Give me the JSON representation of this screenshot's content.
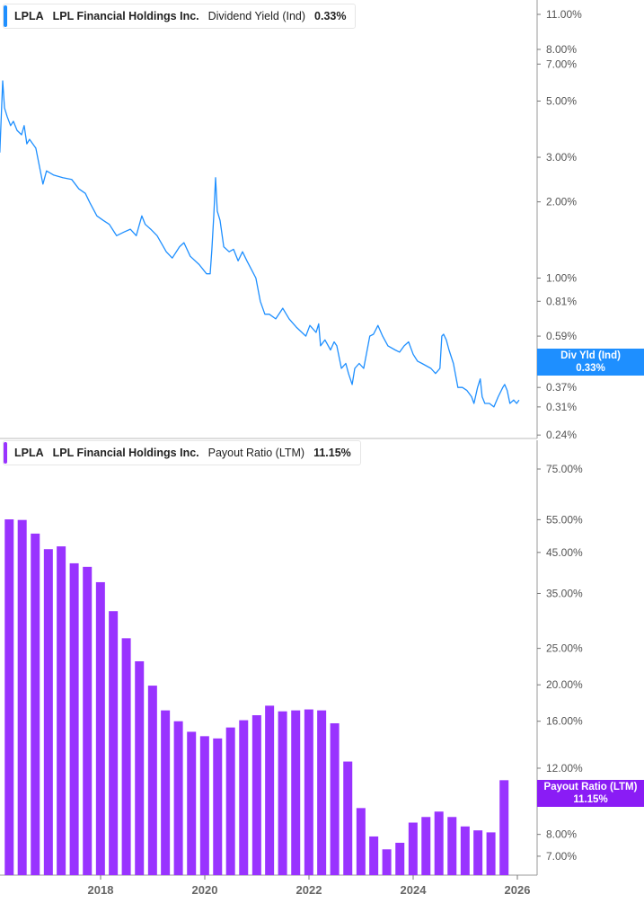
{
  "colors": {
    "yield_line": "#1e8fff",
    "payout_bar": "#9933ff",
    "yield_badge": "#1e8fff",
    "payout_badge": "#8a1cf5"
  },
  "top_legend": {
    "ticker": "LPLA",
    "company": "LPL Financial Holdings Inc.",
    "metric": "Dividend Yield (Ind)",
    "value": "0.33%"
  },
  "bottom_legend": {
    "ticker": "LPLA",
    "company": "LPL Financial Holdings Inc.",
    "metric": "Payout Ratio (LTM)",
    "value": "11.15%"
  },
  "top_badge": {
    "label": "Div Yld (Ind)",
    "value": "0.33%"
  },
  "bottom_badge": {
    "label": "Payout Ratio (LTM)",
    "value": "11.15%"
  },
  "chart_data": [
    {
      "type": "line",
      "series_label": "Dividend Yield (Ind)",
      "yscale": "log",
      "ylim": [
        0.24,
        12
      ],
      "y_ticks": [
        "11.00%",
        "8.00%",
        "7.00%",
        "5.00%",
        "3.00%",
        "2.00%",
        "1.00%",
        "0.81%",
        "0.59%",
        "0.37%",
        "0.31%",
        "0.24%"
      ],
      "y_tick_values": [
        11,
        8,
        7,
        5,
        3,
        2,
        1,
        0.81,
        0.59,
        0.37,
        0.31,
        0.24
      ],
      "points": [
        [
          "2016-01-25",
          3.13
        ],
        [
          "2016-02-14",
          6.01
        ],
        [
          "2016-02-27",
          4.7
        ],
        [
          "2016-03-17",
          4.34
        ],
        [
          "2016-04-10",
          4.0
        ],
        [
          "2016-04-29",
          4.16
        ],
        [
          "2016-05-25",
          3.83
        ],
        [
          "2016-06-26",
          3.68
        ],
        [
          "2016-07-14",
          4.0
        ],
        [
          "2016-08-02",
          3.39
        ],
        [
          "2016-08-21",
          3.53
        ],
        [
          "2016-10-04",
          3.26
        ],
        [
          "2016-11-23",
          2.35
        ],
        [
          "2016-12-18",
          2.65
        ],
        [
          "2017-02-07",
          2.55
        ],
        [
          "2017-04-11",
          2.49
        ],
        [
          "2017-06-13",
          2.45
        ],
        [
          "2017-08-02",
          2.25
        ],
        [
          "2017-09-16",
          2.16
        ],
        [
          "2017-10-17",
          1.99
        ],
        [
          "2017-12-06",
          1.76
        ],
        [
          "2018-01-20",
          1.69
        ],
        [
          "2018-03-03",
          1.63
        ],
        [
          "2018-04-23",
          1.47
        ],
        [
          "2018-06-13",
          1.52
        ],
        [
          "2018-07-28",
          1.56
        ],
        [
          "2018-09-08",
          1.47
        ],
        [
          "2018-10-17",
          1.76
        ],
        [
          "2018-11-10",
          1.63
        ],
        [
          "2018-12-18",
          1.56
        ],
        [
          "2019-02-01",
          1.47
        ],
        [
          "2019-04-06",
          1.27
        ],
        [
          "2019-05-18",
          1.2
        ],
        [
          "2019-07-08",
          1.33
        ],
        [
          "2019-08-08",
          1.38
        ],
        [
          "2019-09-21",
          1.22
        ],
        [
          "2019-11-23",
          1.13
        ],
        [
          "2020-01-13",
          1.04
        ],
        [
          "2020-02-08",
          1.04
        ],
        [
          "2020-02-20",
          1.3
        ],
        [
          "2020-03-04",
          1.76
        ],
        [
          "2020-03-17",
          2.49
        ],
        [
          "2020-03-29",
          1.84
        ],
        [
          "2020-04-17",
          1.69
        ],
        [
          "2020-05-13",
          1.33
        ],
        [
          "2020-06-20",
          1.27
        ],
        [
          "2020-07-21",
          1.3
        ],
        [
          "2020-08-22",
          1.17
        ],
        [
          "2020-09-22",
          1.27
        ],
        [
          "2020-10-23",
          1.17
        ],
        [
          "2020-11-24",
          1.08
        ],
        [
          "2020-12-25",
          1.0
        ],
        [
          "2021-01-25",
          0.81
        ],
        [
          "2021-02-26",
          0.72
        ],
        [
          "2021-03-29",
          0.72
        ],
        [
          "2021-05-13",
          0.69
        ],
        [
          "2021-07-01",
          0.76
        ],
        [
          "2021-08-15",
          0.69
        ],
        [
          "2021-10-04",
          0.64
        ],
        [
          "2021-12-10",
          0.59
        ],
        [
          "2022-01-07",
          0.65
        ],
        [
          "2022-02-20",
          0.61
        ],
        [
          "2022-03-10",
          0.66
        ],
        [
          "2022-03-23",
          0.54
        ],
        [
          "2022-04-23",
          0.57
        ],
        [
          "2022-06-01",
          0.52
        ],
        [
          "2022-06-26",
          0.56
        ],
        [
          "2022-07-15",
          0.54
        ],
        [
          "2022-08-16",
          0.44
        ],
        [
          "2022-09-16",
          0.46
        ],
        [
          "2022-10-05",
          0.42
        ],
        [
          "2022-10-31",
          0.38
        ],
        [
          "2022-11-18",
          0.44
        ],
        [
          "2022-12-19",
          0.46
        ],
        [
          "2023-01-19",
          0.44
        ],
        [
          "2023-02-07",
          0.5
        ],
        [
          "2023-03-03",
          0.59
        ],
        [
          "2023-03-29",
          0.6
        ],
        [
          "2023-04-29",
          0.65
        ],
        [
          "2023-06-01",
          0.59
        ],
        [
          "2023-07-08",
          0.54
        ],
        [
          "2023-08-28",
          0.52
        ],
        [
          "2023-09-28",
          0.51
        ],
        [
          "2023-10-30",
          0.54
        ],
        [
          "2023-11-30",
          0.56
        ],
        [
          "2024-01-01",
          0.5
        ],
        [
          "2024-01-31",
          0.47
        ],
        [
          "2024-03-03",
          0.46
        ],
        [
          "2024-05-05",
          0.44
        ],
        [
          "2024-06-06",
          0.42
        ],
        [
          "2024-07-07",
          0.44
        ],
        [
          "2024-07-20",
          0.59
        ],
        [
          "2024-08-02",
          0.6
        ],
        [
          "2024-08-21",
          0.57
        ],
        [
          "2024-09-09",
          0.52
        ],
        [
          "2024-10-10",
          0.46
        ],
        [
          "2024-11-10",
          0.37
        ],
        [
          "2024-12-12",
          0.37
        ],
        [
          "2025-01-13",
          0.36
        ],
        [
          "2025-02-14",
          0.34
        ],
        [
          "2025-03-03",
          0.32
        ],
        [
          "2025-03-28",
          0.37
        ],
        [
          "2025-04-16",
          0.4
        ],
        [
          "2025-04-29",
          0.34
        ],
        [
          "2025-05-18",
          0.32
        ],
        [
          "2025-06-19",
          0.32
        ],
        [
          "2025-07-21",
          0.31
        ],
        [
          "2025-08-20",
          0.34
        ],
        [
          "2025-09-21",
          0.37
        ],
        [
          "2025-10-04",
          0.38
        ],
        [
          "2025-10-22",
          0.36
        ],
        [
          "2025-11-10",
          0.32
        ],
        [
          "2025-12-06",
          0.33
        ],
        [
          "2025-12-27",
          0.32
        ],
        [
          "2026-01-13",
          0.33
        ]
      ]
    },
    {
      "type": "bar",
      "series_label": "Payout Ratio (LTM)",
      "yscale": "log",
      "ylim": [
        6.3,
        90
      ],
      "y_ticks": [
        "75.00%",
        "55.00%",
        "45.00%",
        "35.00%",
        "25.00%",
        "20.00%",
        "16.00%",
        "12.00%",
        "8.00%",
        "7.00%"
      ],
      "y_tick_values": [
        75,
        55,
        45,
        35,
        25,
        20,
        16,
        12,
        8,
        7
      ],
      "x_ticks": [
        "2018",
        "2020",
        "2022",
        "2024",
        "2026"
      ],
      "categories": [
        "2016-03-31",
        "2016-06-30",
        "2016-09-30",
        "2016-12-31",
        "2017-03-31",
        "2017-06-30",
        "2017-09-30",
        "2017-12-31",
        "2018-03-31",
        "2018-06-30",
        "2018-09-30",
        "2018-12-31",
        "2019-03-31",
        "2019-06-30",
        "2019-09-30",
        "2019-12-31",
        "2020-03-31",
        "2020-06-30",
        "2020-09-30",
        "2020-12-31",
        "2021-03-31",
        "2021-06-30",
        "2021-09-30",
        "2021-12-31",
        "2022-03-31",
        "2022-06-30",
        "2022-09-30",
        "2022-12-31",
        "2023-03-31",
        "2023-06-30",
        "2023-09-30",
        "2023-12-31",
        "2024-03-31",
        "2024-06-30",
        "2024-09-30",
        "2024-12-31",
        "2025-03-31",
        "2025-06-30",
        "2025-09-30"
      ],
      "values": [
        55.1,
        54.9,
        50.5,
        45.9,
        46.7,
        42.1,
        41.2,
        37.5,
        31.4,
        26.6,
        23.1,
        19.9,
        17.1,
        16.0,
        15.0,
        14.6,
        14.4,
        15.4,
        16.1,
        16.6,
        17.6,
        17.0,
        17.1,
        17.2,
        17.1,
        15.8,
        12.5,
        9.4,
        7.9,
        7.3,
        7.6,
        8.6,
        8.9,
        9.2,
        8.9,
        8.4,
        8.2,
        8.1,
        11.15
      ]
    }
  ]
}
